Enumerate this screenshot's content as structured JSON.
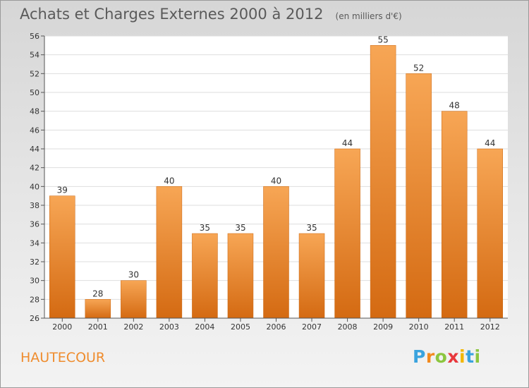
{
  "chart_data": {
    "type": "bar",
    "title": "Achats et Charges Externes 2000 à 2012",
    "subtitle": "(en milliers d'€)",
    "categories": [
      "2000",
      "2001",
      "2002",
      "2003",
      "2004",
      "2005",
      "2006",
      "2007",
      "2008",
      "2009",
      "2010",
      "2011",
      "2012"
    ],
    "values": [
      39,
      28,
      30,
      40,
      35,
      35,
      40,
      35,
      44,
      55,
      52,
      48,
      44
    ],
    "ylim": [
      26,
      56
    ],
    "yticks": [
      26,
      28,
      30,
      32,
      34,
      36,
      38,
      40,
      42,
      44,
      46,
      48,
      50,
      52,
      54,
      56
    ],
    "grid": true,
    "bar_color_top": "#f7a655",
    "bar_color_bottom": "#d46a12"
  },
  "commune": "HAUTECOUR",
  "logo": {
    "letters": [
      "P",
      "r",
      "o",
      "x",
      "i",
      "t",
      "i"
    ],
    "colors": [
      "#3aa3de",
      "#f28a1e",
      "#8cc63f",
      "#e8383d",
      "#f2b705",
      "#3aa3de",
      "#8cc63f"
    ]
  }
}
